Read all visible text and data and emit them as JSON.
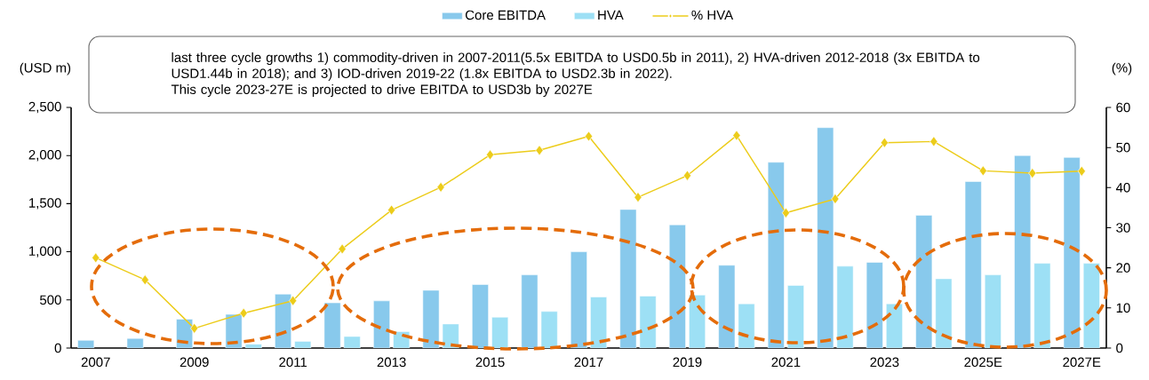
{
  "chart_data": {
    "type": "bar",
    "categories": [
      "2007",
      null,
      "2009",
      null,
      "2011",
      null,
      "2013",
      null,
      "2015",
      null,
      "2017",
      null,
      "2019",
      null,
      "2021",
      null,
      "2023",
      null,
      "2025E",
      null,
      "2027E"
    ],
    "series": [
      {
        "name": "Core EBITDA",
        "color": "#88c9ec",
        "values": [
          80,
          100,
          300,
          350,
          560,
          470,
          490,
          600,
          660,
          760,
          1000,
          1440,
          1280,
          860,
          1930,
          2290,
          890,
          1380,
          1730,
          2000,
          1980
        ]
      },
      {
        "name": "HVA",
        "color": "#9de0f5",
        "values": [
          null,
          null,
          null,
          40,
          70,
          120,
          170,
          250,
          320,
          380,
          530,
          540,
          550,
          460,
          650,
          850,
          460,
          720,
          760,
          880,
          880
        ]
      },
      {
        "name": "% HVA",
        "type": "line",
        "axis": "y2",
        "color": "#eccc1a",
        "marker": "diamond",
        "values": [
          22.5,
          17.0,
          4.9,
          8.7,
          11.8,
          24.7,
          34.4,
          40.1,
          48.2,
          49.3,
          52.8,
          37.6,
          43.0,
          53.0,
          33.7,
          37.2,
          51.2,
          51.5,
          44.2,
          43.6,
          44.1
        ]
      }
    ],
    "ylabel": "(USD m)",
    "y2label": "(%)",
    "ylim": [
      0,
      2500
    ],
    "yticks": [
      0,
      {
        "value": 500,
        "label": "500"
      },
      {
        "value": 1000,
        "label": "1,000"
      },
      {
        "value": 1500,
        "label": "1,500"
      },
      {
        "value": 2000,
        "label": "2,000"
      },
      {
        "value": 2500,
        "label": "2,500"
      }
    ],
    "y2lim": [
      0,
      60
    ],
    "y2ticks": [
      0,
      10,
      20,
      30,
      40,
      50,
      60
    ],
    "legend": "top",
    "grid": false,
    "annotations": [
      "last three cycle growths 1) commodity-driven in 2007-2011(5.5x EBITDA to USD0.5b in 2011),  2) HVA-driven 2012-2018 (3x EBITDA to USD1.44b in 2018); and 3) IOD-driven 2019-22 (1.8x EBITDA to USD2.3b in 2022).",
      "This cycle 2023-27E is projected to drive EBITDA to USD3b by 2027E"
    ]
  }
}
